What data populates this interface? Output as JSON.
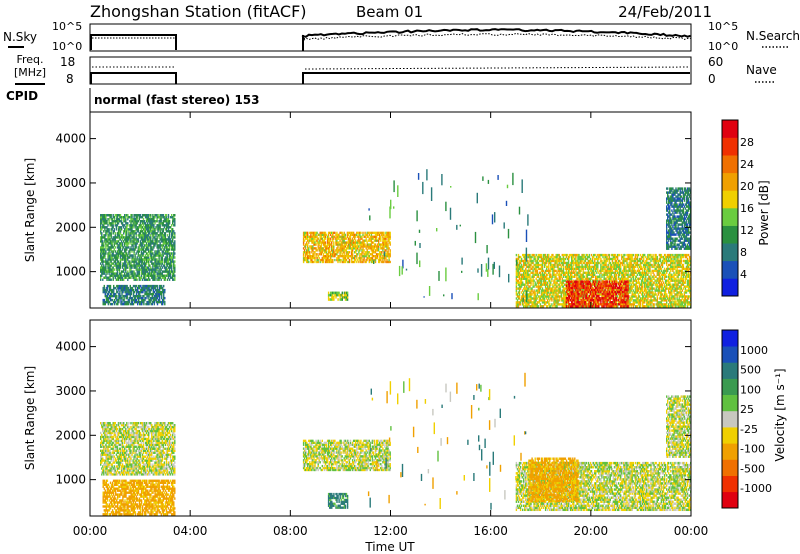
{
  "header": {
    "title": "Zhongshan Station (fitACF)",
    "beam": "Beam 01",
    "date": "24/Feb/2011"
  },
  "status_panels": {
    "nsky_label": "N.Sky",
    "nsearch_label": "N.Search",
    "freq_label_1": "Freq.",
    "freq_label_2": "[MHz]",
    "nave_label": "Nave",
    "cpid_label": "CPID",
    "cpid_text": "normal (fast stereo) 153",
    "noise_ticks_left": [
      "10^5",
      "10^0"
    ],
    "noise_ticks_right": [
      "10^5",
      "10^0"
    ],
    "freq_ticks": [
      "18",
      "8"
    ],
    "nave_ticks": [
      "60",
      "0"
    ]
  },
  "colorbars": {
    "power": {
      "label": "Power [dB]",
      "ticks": [
        "28",
        "24",
        "20",
        "16",
        "12",
        "8",
        "4"
      ],
      "colors": [
        "#1020e0",
        "#1a50b8",
        "#2a7a7a",
        "#2a9040",
        "#6acc40",
        "#f0d000",
        "#f0a000",
        "#f07000",
        "#f03000",
        "#e00010"
      ]
    },
    "velocity": {
      "label": "Velocity [m s⁻¹]",
      "ticks": [
        "1000",
        "500",
        "100",
        "25",
        "-25",
        "-100",
        "-500",
        "-1000"
      ],
      "colors": [
        "#1020e0",
        "#1a50b8",
        "#2a7a7a",
        "#3a9a50",
        "#60c040",
        "#c8c8c0",
        "#f0d000",
        "#f0a000",
        "#f07000",
        "#f03000",
        "#e00010"
      ]
    }
  },
  "chart_data": [
    {
      "type": "heatmap",
      "name": "power",
      "ylabel": "Slant Range [km]",
      "yticks": [
        "4000",
        "3000",
        "2000",
        "1000"
      ],
      "ylim": [
        180,
        4600
      ],
      "x_range_hours": [
        0,
        24
      ],
      "value_label": "Power [dB]",
      "patches": [
        {
          "x0": 0.4,
          "x1": 3.4,
          "y0": 800,
          "y1": 2300,
          "v": 10
        },
        {
          "x0": 0.5,
          "x1": 3.0,
          "y0": 250,
          "y1": 700,
          "v": 8
        },
        {
          "x0": 8.5,
          "x1": 12.0,
          "y0": 1200,
          "y1": 1900,
          "v": 18
        },
        {
          "x0": 9.5,
          "x1": 10.3,
          "y0": 350,
          "y1": 550,
          "v": 14
        },
        {
          "x0": 17.0,
          "x1": 24.0,
          "y0": 200,
          "y1": 1400,
          "v": 16
        },
        {
          "x0": 19.0,
          "x1": 21.5,
          "y0": 200,
          "y1": 800,
          "v": 26
        },
        {
          "x0": 23.0,
          "x1": 24.0,
          "y0": 1500,
          "y1": 2900,
          "v": 8
        }
      ]
    },
    {
      "type": "heatmap",
      "name": "velocity",
      "ylabel": "Slant Range [km]",
      "yticks": [
        "4000",
        "3000",
        "2000",
        "1000"
      ],
      "ylim": [
        180,
        4600
      ],
      "x_range_hours": [
        0,
        24
      ],
      "value_label": "Velocity [m s⁻¹]",
      "patches": [
        {
          "x0": 0.4,
          "x1": 3.4,
          "y0": 1100,
          "y1": 2300,
          "v": 0
        },
        {
          "x0": 0.5,
          "x1": 3.4,
          "y0": 200,
          "y1": 1000,
          "v": -150
        },
        {
          "x0": 8.5,
          "x1": 12.0,
          "y0": 1200,
          "y1": 1900,
          "v": 0
        },
        {
          "x0": 9.5,
          "x1": 10.3,
          "y0": 350,
          "y1": 700,
          "v": 150
        },
        {
          "x0": 17.0,
          "x1": 24.0,
          "y0": 300,
          "y1": 1400,
          "v": 0
        },
        {
          "x0": 17.5,
          "x1": 19.5,
          "y0": 500,
          "y1": 1500,
          "v": -150
        },
        {
          "x0": 23.0,
          "x1": 24.0,
          "y0": 1500,
          "y1": 2900,
          "v": 0
        }
      ]
    }
  ],
  "xaxis": {
    "label": "Time UT",
    "ticks": [
      "00:00",
      "04:00",
      "08:00",
      "12:00",
      "16:00",
      "20:00",
      "00:00"
    ]
  }
}
